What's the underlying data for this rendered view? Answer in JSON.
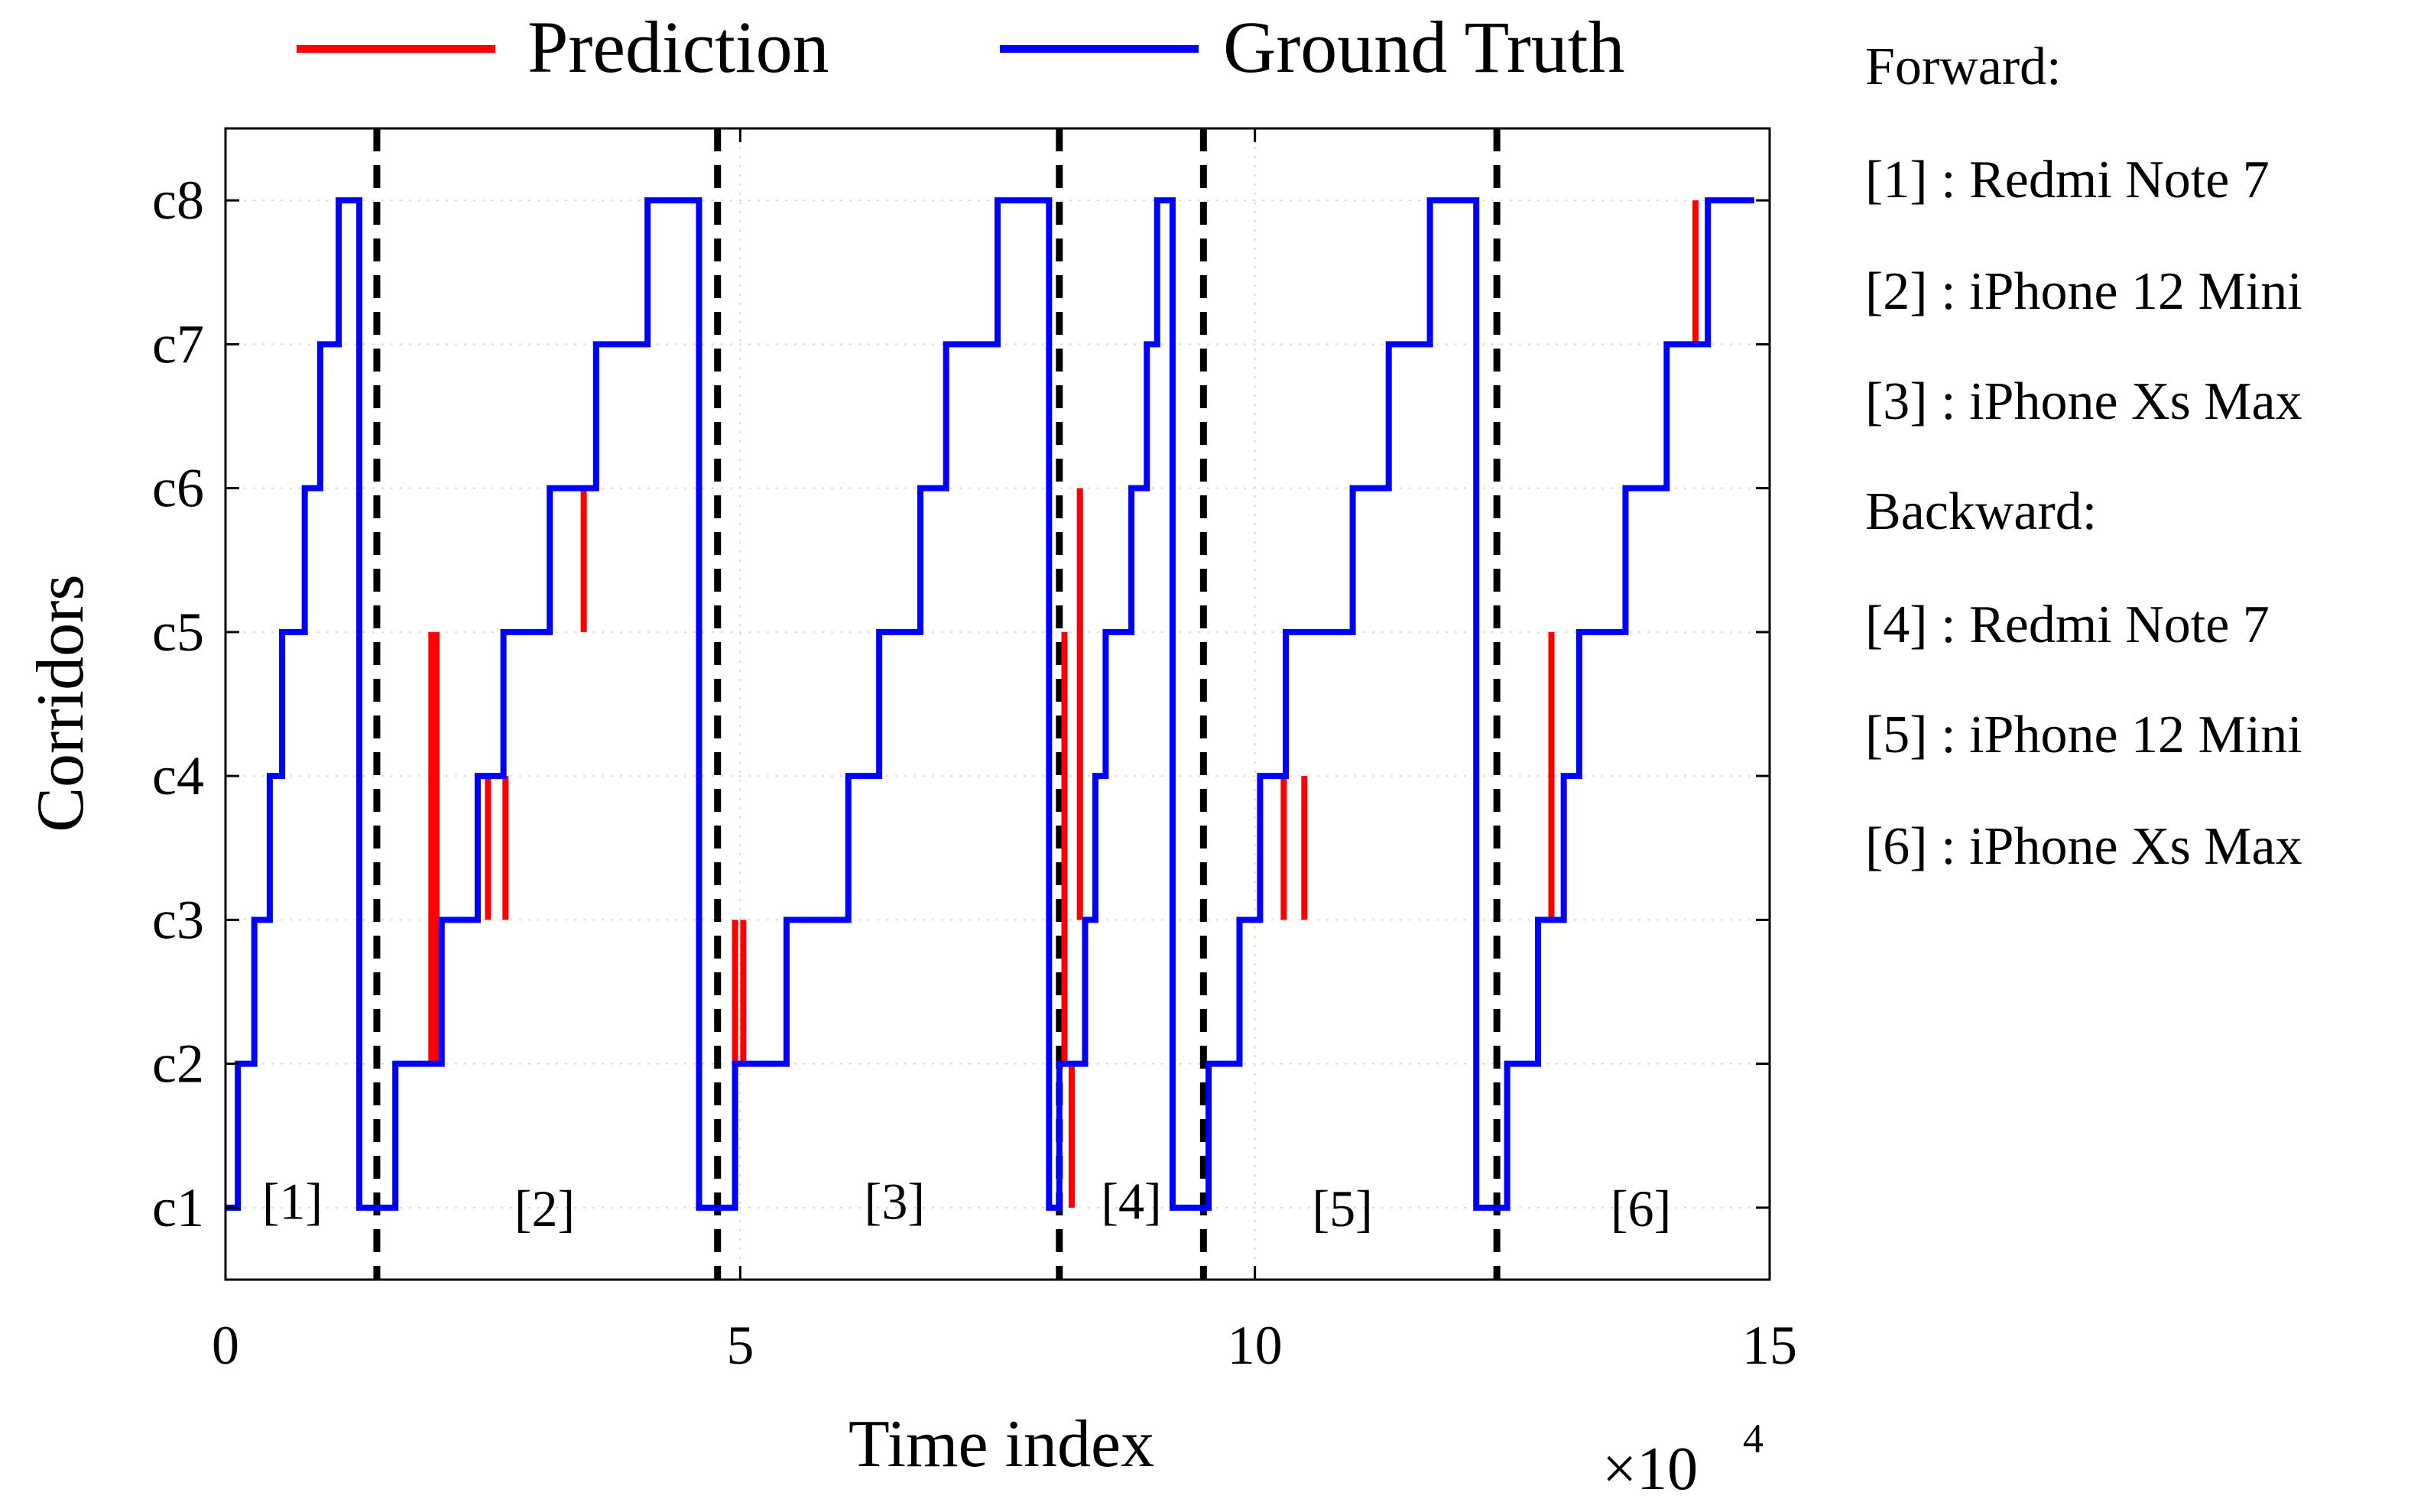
{
  "chart_data": {
    "type": "line",
    "xlabel": "Time index",
    "ylabel": "Corridors",
    "x_multiplier": "×10",
    "x_multiplier_exp": "4",
    "xlim": [
      0,
      150000
    ],
    "ylim": [
      0.5,
      8.5
    ],
    "xticks": [
      {
        "value": 0,
        "label": "0"
      },
      {
        "value": 50000,
        "label": "5"
      },
      {
        "value": 100000,
        "label": "10"
      },
      {
        "value": 150000,
        "label": "15"
      }
    ],
    "yticks": [
      {
        "value": 1,
        "label": "c1"
      },
      {
        "value": 2,
        "label": "c2"
      },
      {
        "value": 3,
        "label": "c3"
      },
      {
        "value": 4,
        "label": "c4"
      },
      {
        "value": 5,
        "label": "c5"
      },
      {
        "value": 6,
        "label": "c6"
      },
      {
        "value": 7,
        "label": "c7"
      },
      {
        "value": 8,
        "label": "c8"
      }
    ],
    "grid": true,
    "legend": {
      "placement": "top",
      "entries": [
        {
          "name": "Prediction",
          "color": "#ff0000"
        },
        {
          "name": "Ground Truth",
          "color": "#0000ff"
        }
      ]
    },
    "segment_boundaries": [
      14700,
      47800,
      81000,
      95000,
      123500
    ],
    "segment_labels": [
      {
        "label": "[1]",
        "x": 6500,
        "y": 1.05
      },
      {
        "label": "[2]",
        "x": 31000,
        "y": 1.0
      },
      {
        "label": "[3]",
        "x": 65000,
        "y": 1.05
      },
      {
        "label": "[4]",
        "x": 88000,
        "y": 1.05
      },
      {
        "label": "[5]",
        "x": 108500,
        "y": 1.0
      },
      {
        "label": "[6]",
        "x": 137500,
        "y": 1.0
      }
    ],
    "series": [
      {
        "name": "Ground Truth",
        "color": "#0000ff",
        "steps": [
          [
            0,
            1
          ],
          [
            1200,
            2
          ],
          [
            2800,
            3
          ],
          [
            4300,
            4
          ],
          [
            5500,
            5
          ],
          [
            7700,
            6
          ],
          [
            9200,
            7
          ],
          [
            11000,
            8
          ],
          [
            13000,
            1
          ],
          [
            16500,
            2
          ],
          [
            21000,
            3
          ],
          [
            24500,
            4
          ],
          [
            27000,
            5
          ],
          [
            31500,
            6
          ],
          [
            36000,
            7
          ],
          [
            41000,
            8
          ],
          [
            46000,
            1
          ],
          [
            49500,
            2
          ],
          [
            54500,
            3
          ],
          [
            60500,
            4
          ],
          [
            63500,
            5
          ],
          [
            67500,
            6
          ],
          [
            70000,
            7
          ],
          [
            75000,
            8
          ],
          [
            80000,
            1
          ],
          [
            81000,
            2
          ],
          [
            83500,
            3
          ],
          [
            84500,
            4
          ],
          [
            85500,
            5
          ],
          [
            88000,
            6
          ],
          [
            89500,
            7
          ],
          [
            90500,
            8
          ],
          [
            92000,
            1
          ],
          [
            95500,
            2
          ],
          [
            98500,
            3
          ],
          [
            100500,
            4
          ],
          [
            103000,
            5
          ],
          [
            109500,
            6
          ],
          [
            113000,
            7
          ],
          [
            117000,
            8
          ],
          [
            121500,
            1
          ],
          [
            124500,
            2
          ],
          [
            127500,
            3
          ],
          [
            130000,
            4
          ],
          [
            131500,
            5
          ],
          [
            136000,
            6
          ],
          [
            140000,
            7
          ],
          [
            144000,
            8
          ],
          [
            148500,
            8
          ]
        ]
      },
      {
        "name": "Prediction",
        "color": "#ff0000",
        "spikes": [
          {
            "x": 20000,
            "from": 2,
            "to": 5
          },
          {
            "x": 20500,
            "from": 2,
            "to": 5
          },
          {
            "x": 25500,
            "from": 4,
            "to": 3
          },
          {
            "x": 27200,
            "from": 4,
            "to": 3
          },
          {
            "x": 34800,
            "from": 6,
            "to": 5
          },
          {
            "x": 49500,
            "from": 2,
            "to": 3
          },
          {
            "x": 50300,
            "from": 2,
            "to": 3
          },
          {
            "x": 81500,
            "from": 2,
            "to": 5
          },
          {
            "x": 82200,
            "from": 2,
            "to": 1
          },
          {
            "x": 83000,
            "from": 3,
            "to": 6
          },
          {
            "x": 102800,
            "from": 4,
            "to": 3
          },
          {
            "x": 104800,
            "from": 4,
            "to": 3
          },
          {
            "x": 128800,
            "from": 3,
            "to": 5
          },
          {
            "x": 142800,
            "from": 7,
            "to": 8
          }
        ]
      }
    ]
  },
  "side_notes": {
    "forward_title": "Forward:",
    "forward": [
      "[1] : Redmi Note 7",
      "[2] : iPhone 12 Mini",
      "[3] : iPhone Xs Max"
    ],
    "backward_title": "Backward:",
    "backward": [
      "[4] : Redmi Note 7",
      "[5] : iPhone 12 Mini",
      "[6] : iPhone Xs Max"
    ]
  }
}
